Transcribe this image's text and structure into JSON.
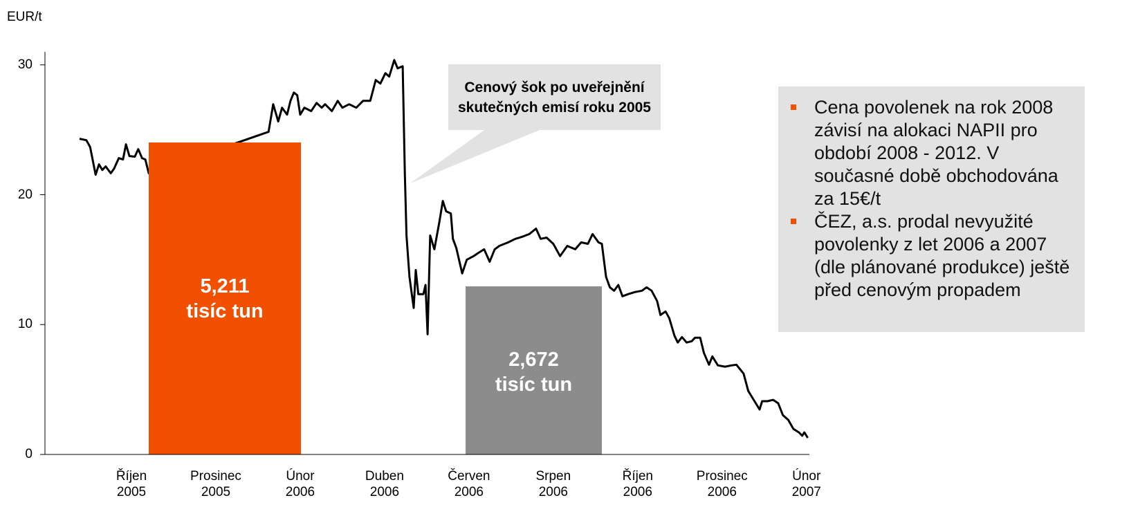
{
  "chart_data": {
    "type": "line",
    "y_label": "EUR/t",
    "color": "#000000",
    "xlim": [
      -2.05,
      16.07
    ],
    "xticks": [
      {
        "value": 0,
        "label": "Říjen\n2005"
      },
      {
        "value": 2,
        "label": "Prosinec\n2005"
      },
      {
        "value": 4,
        "label": "Únor\n2006"
      },
      {
        "value": 6,
        "label": "Duben\n2006"
      },
      {
        "value": 8,
        "label": "Červen\n2006"
      },
      {
        "value": 10,
        "label": "Srpen\n2006"
      },
      {
        "value": 12,
        "label": "Říjen\n2006"
      },
      {
        "value": 14,
        "label": "Prosinec\n2006"
      },
      {
        "value": 16,
        "label": "Únor\n2007"
      }
    ],
    "ylim": [
      0,
      31
    ],
    "yticks": [
      0,
      10,
      20,
      30
    ],
    "x": [
      -1.23,
      -1.07,
      -0.98,
      -0.85,
      -0.77,
      -0.69,
      -0.61,
      -0.49,
      -0.41,
      -0.3,
      -0.2,
      -0.13,
      -0.05,
      0.08,
      0.16,
      0.25,
      0.33,
      0.41,
      3.25,
      3.36,
      3.48,
      3.57,
      3.69,
      3.77,
      3.85,
      3.93,
      4.0,
      4.1,
      4.26,
      4.39,
      4.51,
      4.59,
      4.75,
      4.89,
      5.0,
      5.16,
      5.33,
      5.49,
      5.66,
      5.79,
      5.9,
      6.02,
      6.11,
      6.23,
      6.31,
      6.43,
      6.48,
      6.52,
      6.59,
      6.69,
      6.74,
      6.8,
      6.92,
      6.97,
      7.02,
      7.08,
      7.18,
      7.3,
      7.38,
      7.46,
      7.57,
      7.62,
      7.7,
      7.84,
      7.95,
      8.11,
      8.23,
      8.36,
      8.49,
      8.61,
      8.72,
      8.93,
      9.1,
      9.26,
      9.43,
      9.59,
      9.7,
      9.84,
      10.0,
      10.16,
      10.33,
      10.52,
      10.66,
      10.82,
      10.93,
      11.07,
      11.15,
      11.25,
      11.34,
      11.44,
      11.54,
      11.64,
      11.77,
      11.93,
      12.1,
      12.21,
      12.33,
      12.46,
      12.54,
      12.66,
      12.75,
      12.87,
      12.95,
      13.05,
      13.16,
      13.28,
      13.36,
      13.48,
      13.57,
      13.69,
      13.77,
      13.9,
      14.07,
      14.23,
      14.34,
      14.51,
      14.62,
      14.75,
      14.89,
      14.95,
      15.08,
      15.21,
      15.33,
      15.44,
      15.57,
      15.69,
      15.82,
      15.9,
      15.95,
      16.03
    ],
    "values": [
      24.31,
      24.2,
      23.67,
      21.54,
      22.34,
      21.91,
      22.18,
      21.65,
      22.02,
      22.82,
      22.71,
      23.88,
      22.98,
      22.93,
      23.51,
      22.82,
      22.71,
      21.65,
      24.84,
      26.97,
      25.64,
      26.7,
      26.17,
      27.23,
      27.87,
      27.66,
      26.17,
      26.7,
      26.44,
      27.07,
      26.7,
      26.97,
      26.44,
      27.23,
      26.7,
      26.97,
      26.7,
      27.23,
      27.23,
      28.83,
      28.56,
      29.36,
      29.1,
      30.37,
      29.73,
      29.89,
      21.65,
      16.86,
      13.67,
      11.28,
      14.2,
      12.34,
      12.34,
      13.05,
      9.26,
      16.86,
      15.8,
      17.93,
      19.52,
      18.72,
      18.56,
      16.6,
      15.9,
      13.94,
      15.0,
      15.27,
      15.53,
      15.8,
      14.84,
      15.8,
      16.06,
      16.33,
      16.6,
      16.76,
      16.97,
      17.39,
      16.6,
      16.7,
      16.22,
      15.27,
      16.06,
      15.8,
      16.33,
      16.22,
      16.97,
      16.33,
      16.22,
      13.67,
      12.87,
      12.61,
      13.05,
      12.18,
      12.34,
      12.5,
      12.61,
      12.87,
      12.61,
      11.81,
      10.74,
      11.01,
      10.48,
      9.15,
      8.62,
      9.04,
      8.62,
      8.72,
      8.99,
      8.99,
      7.82,
      6.91,
      7.55,
      6.86,
      6.76,
      6.86,
      6.91,
      6.22,
      4.89,
      4.2,
      3.46,
      4.1,
      4.1,
      4.2,
      3.94,
      3.03,
      2.66,
      1.97,
      1.7,
      1.44,
      1.7,
      1.28
    ],
    "annotations": {
      "sold_before": "5,211\ntisíc tun",
      "sold_after": "2,672\ntisíc tun",
      "callout": "Cenový šok po uveřejnění skutečných emisí roku 2005"
    },
    "notes": [
      "Cena povolenek na rok 2008 závisí na alokaci NAPII pro období 2008 - 2012. V současné době obchodována za 15€/t",
      "ČEZ, a.s. prodal nevyužité povolenky z let 2006 a 2007 (dle plánované produkce) ještě před cenovým propadem"
    ]
  }
}
